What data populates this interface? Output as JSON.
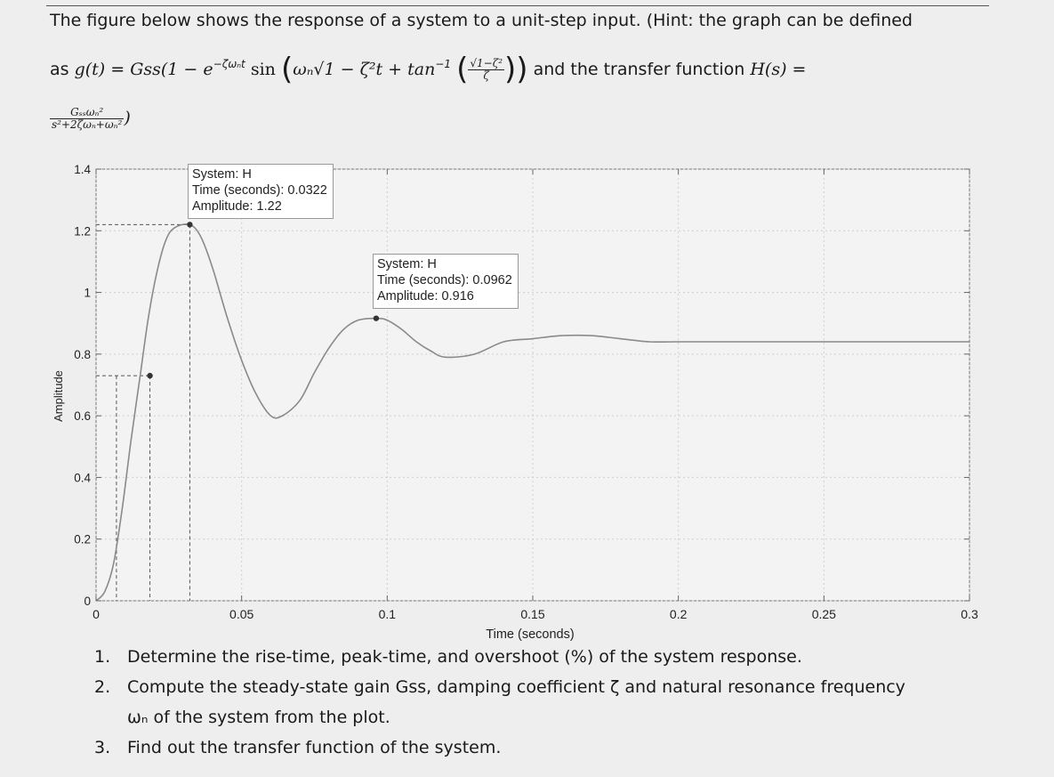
{
  "intro": {
    "line1": "The figure below shows the response of a system to a unit-step input. (Hint: the graph can be defined",
    "as_word": "as",
    "and_tf": "and the transfer function",
    "g_lhs": "g(t) = Gss(1 − e",
    "exp_text": "−ζωₙt",
    "sin_text": "sin",
    "arg_text": "ωₙ√1 − ζ²t + tan",
    "inv_text": "−1",
    "frac_num": "√1−ζ²",
    "frac_den": "ζ",
    "h_lhs": "H(s) =",
    "tf_num": "Gₛₛωₙ²",
    "tf_den": "s²+2ζωₙ+ωₙ²",
    "tf_close": ")"
  },
  "chart_data": {
    "type": "line",
    "title": "",
    "xlabel": "Time (seconds)",
    "ylabel": "Amplitude",
    "xlim": [
      0,
      0.3
    ],
    "ylim": [
      0,
      1.4
    ],
    "xticks": [
      0,
      0.05,
      0.1,
      0.15,
      0.2,
      0.25,
      0.3
    ],
    "xtick_labels": [
      "0",
      "0.05",
      "0.1",
      "0.15",
      "0.2",
      "0.25",
      "0.3"
    ],
    "yticks": [
      0,
      0.2,
      0.4,
      0.6,
      0.8,
      1,
      1.2,
      1.4
    ],
    "ytick_labels": [
      "0",
      "0.2",
      "0.4",
      "0.6",
      "0.8",
      "1",
      "1.2",
      "1.4"
    ],
    "grid": true,
    "series": [
      {
        "x": [
          0,
          0.003,
          0.006,
          0.009,
          0.012,
          0.015,
          0.018,
          0.021,
          0.024,
          0.027,
          0.0322,
          0.036,
          0.04,
          0.045,
          0.05,
          0.055,
          0.06,
          0.064,
          0.07,
          0.075,
          0.08,
          0.085,
          0.09,
          0.0962,
          0.1,
          0.105,
          0.11,
          0.115,
          0.12,
          0.13,
          0.14,
          0.15,
          0.16,
          0.17,
          0.18,
          0.19,
          0.2,
          0.22,
          0.25,
          0.3
        ],
        "y": [
          0,
          0.03,
          0.12,
          0.3,
          0.52,
          0.72,
          0.92,
          1.07,
          1.17,
          1.21,
          1.22,
          1.18,
          1.08,
          0.92,
          0.78,
          0.67,
          0.6,
          0.6,
          0.65,
          0.74,
          0.82,
          0.88,
          0.91,
          0.916,
          0.91,
          0.88,
          0.84,
          0.81,
          0.79,
          0.8,
          0.84,
          0.85,
          0.86,
          0.86,
          0.85,
          0.84,
          0.84,
          0.84,
          0.84,
          0.84
        ]
      }
    ],
    "markers": [
      {
        "x": 0.0322,
        "y": 1.22,
        "label_system": "System: H",
        "label_time": "Time (seconds): 0.0322",
        "label_amp": "Amplitude: 1.22"
      },
      {
        "x": 0.0962,
        "y": 0.916,
        "label_system": "System: H",
        "label_time": "Time (seconds): 0.0962",
        "label_amp": "Amplitude: 0.916"
      },
      {
        "x": 0.0185,
        "y": 0.73
      }
    ],
    "guides": [
      {
        "type": "vline",
        "x": 0.0322,
        "y": 1.22
      },
      {
        "type": "hline",
        "x": 0.0322,
        "y": 1.22
      },
      {
        "type": "vline",
        "x": 0.0185,
        "y": 0.73
      },
      {
        "type": "hline",
        "x": 0.0185,
        "y": 0.73
      },
      {
        "type": "vline",
        "x": 0.007,
        "y": 0.73
      }
    ]
  },
  "questions": [
    {
      "num": "1.",
      "text": "Determine the rise-time, peak-time, and overshoot (%) of the system response."
    },
    {
      "num": "2.",
      "text": "Compute the steady-state gain Gss, damping coefficient ζ and natural resonance frequency"
    },
    {
      "num": "",
      "text": "ωₙ of the system from the plot."
    },
    {
      "num": "3.",
      "text": "Find out the transfer function of the system."
    }
  ]
}
